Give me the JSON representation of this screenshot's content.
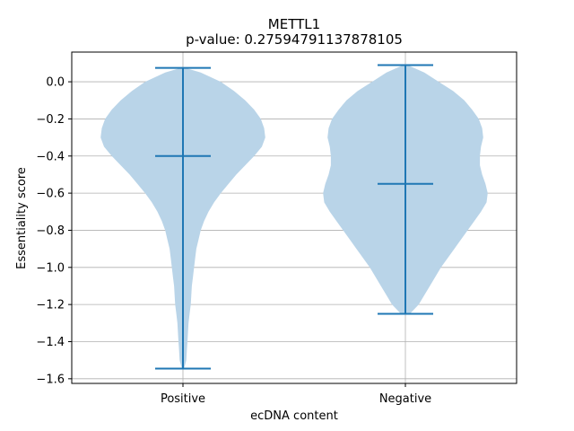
{
  "chart_data": {
    "type": "violin",
    "title": "METTL1",
    "subtitle": "p-value: 0.27594791137878105",
    "xlabel": "ecDNA content",
    "ylabel": "Essentiality score",
    "categories": [
      "Positive",
      "Negative"
    ],
    "ylim": [
      -1.625,
      0.16
    ],
    "yticks": [
      0.0,
      -0.2,
      -0.4,
      -0.6,
      -0.8,
      -1.0,
      -1.2,
      -1.4,
      -1.6
    ],
    "ytick_labels": [
      "0.0",
      "−0.2",
      "−0.4",
      "−0.6",
      "−0.8",
      "−1.0",
      "−1.2",
      "−1.4",
      "−1.6"
    ],
    "grid": true,
    "fill_color": "#b9d4e8",
    "line_color": "#1f77b4",
    "violins": [
      {
        "name": "Positive",
        "max": 0.075,
        "median": -0.4,
        "min": -1.545,
        "profile": [
          [
            0.075,
            0.02
          ],
          [
            0.05,
            0.16
          ],
          [
            0.0,
            0.34
          ],
          [
            -0.05,
            0.46
          ],
          [
            -0.1,
            0.56
          ],
          [
            -0.15,
            0.64
          ],
          [
            -0.2,
            0.7
          ],
          [
            -0.25,
            0.73
          ],
          [
            -0.3,
            0.74
          ],
          [
            -0.35,
            0.71
          ],
          [
            -0.4,
            0.64
          ],
          [
            -0.45,
            0.56
          ],
          [
            -0.5,
            0.48
          ],
          [
            -0.55,
            0.41
          ],
          [
            -0.6,
            0.34
          ],
          [
            -0.65,
            0.28
          ],
          [
            -0.7,
            0.23
          ],
          [
            -0.75,
            0.19
          ],
          [
            -0.8,
            0.16
          ],
          [
            -0.85,
            0.14
          ],
          [
            -0.9,
            0.12
          ],
          [
            -0.95,
            0.11
          ],
          [
            -1.0,
            0.1
          ],
          [
            -1.05,
            0.09
          ],
          [
            -1.1,
            0.08
          ],
          [
            -1.15,
            0.075
          ],
          [
            -1.2,
            0.07
          ],
          [
            -1.25,
            0.06
          ],
          [
            -1.3,
            0.05
          ],
          [
            -1.35,
            0.045
          ],
          [
            -1.4,
            0.04
          ],
          [
            -1.45,
            0.035
          ],
          [
            -1.5,
            0.03
          ],
          [
            -1.545,
            0.01
          ]
        ]
      },
      {
        "name": "Negative",
        "max": 0.09,
        "median": -0.55,
        "min": -1.25,
        "profile": [
          [
            0.09,
            0.02
          ],
          [
            0.05,
            0.17
          ],
          [
            0.0,
            0.3
          ],
          [
            -0.05,
            0.43
          ],
          [
            -0.1,
            0.53
          ],
          [
            -0.15,
            0.6
          ],
          [
            -0.2,
            0.66
          ],
          [
            -0.25,
            0.69
          ],
          [
            -0.3,
            0.7
          ],
          [
            -0.35,
            0.68
          ],
          [
            -0.4,
            0.67
          ],
          [
            -0.45,
            0.67
          ],
          [
            -0.5,
            0.69
          ],
          [
            -0.55,
            0.72
          ],
          [
            -0.6,
            0.74
          ],
          [
            -0.65,
            0.73
          ],
          [
            -0.7,
            0.68
          ],
          [
            -0.75,
            0.62
          ],
          [
            -0.8,
            0.56
          ],
          [
            -0.85,
            0.5
          ],
          [
            -0.9,
            0.44
          ],
          [
            -0.95,
            0.38
          ],
          [
            -1.0,
            0.32
          ],
          [
            -1.05,
            0.27
          ],
          [
            -1.1,
            0.22
          ],
          [
            -1.15,
            0.17
          ],
          [
            -1.2,
            0.12
          ],
          [
            -1.25,
            0.04
          ]
        ]
      }
    ]
  }
}
